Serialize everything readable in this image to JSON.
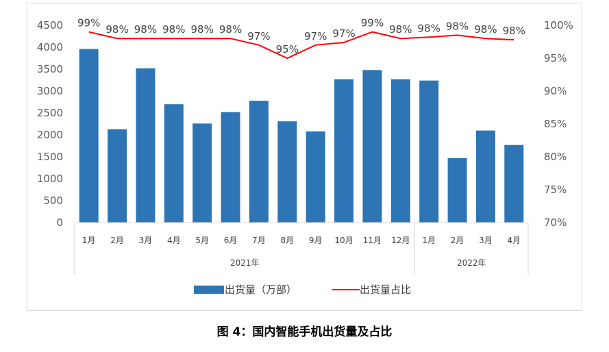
{
  "caption": "图 4：国内智能手机出货量及占比",
  "chart_data": {
    "type": "bar",
    "categories": [
      "1月",
      "2月",
      "3月",
      "4月",
      "5月",
      "6月",
      "7月",
      "8月",
      "9月",
      "10月",
      "11月",
      "12月",
      "1月",
      "2月",
      "3月",
      "4月"
    ],
    "year_groups": [
      {
        "label": "2021年",
        "count": 12
      },
      {
        "label": "2022年",
        "count": 4
      }
    ],
    "series": [
      {
        "name": "出货量（万部）",
        "type": "bar",
        "axis": "left",
        "color": "#2e75b6",
        "values": [
          3960,
          2130,
          3520,
          2700,
          2260,
          2520,
          2780,
          2310,
          2080,
          3270,
          3480,
          3270,
          3240,
          1470,
          2100,
          1770
        ]
      },
      {
        "name": "出货量占比",
        "type": "line",
        "axis": "right",
        "color": "#ff0000",
        "values": [
          99,
          98,
          98,
          98,
          98,
          98,
          97,
          95,
          97,
          97.4,
          99,
          98,
          98.2,
          98.5,
          98,
          97.8
        ],
        "labels": [
          "99%",
          "98%",
          "98%",
          "98%",
          "98%",
          "98%",
          "97%",
          "95%",
          "97%",
          "97%",
          "99%",
          "98%",
          "98%",
          "98%",
          "98%",
          "98%"
        ]
      }
    ],
    "y_left": {
      "min": 0,
      "max": 4500,
      "ticks": [
        0,
        500,
        1000,
        1500,
        2000,
        2500,
        3000,
        3500,
        4000,
        4500
      ]
    },
    "y_right": {
      "min": 70,
      "max": 100,
      "ticks": [
        "70%",
        "75%",
        "80%",
        "85%",
        "90%",
        "95%",
        "100%"
      ]
    },
    "legend_position": "bottom",
    "grid": false
  }
}
